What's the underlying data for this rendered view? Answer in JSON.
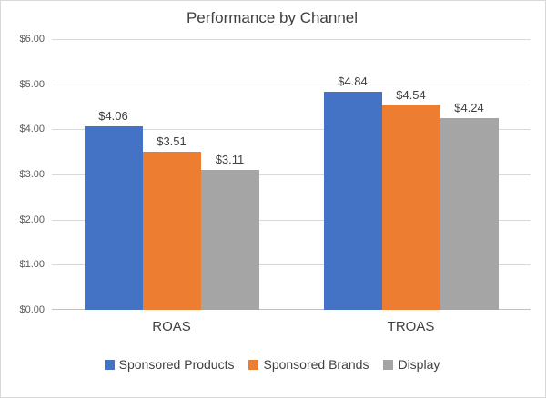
{
  "title": "Performance by Channel",
  "chart_data": {
    "type": "bar",
    "categories": [
      "ROAS",
      "TROAS"
    ],
    "series": [
      {
        "name": "Sponsored Products",
        "color": "#4472C4",
        "values": [
          4.06,
          4.84
        ],
        "labels": [
          "$4.06",
          "$4.84"
        ]
      },
      {
        "name": "Sponsored Brands",
        "color": "#ED7D31",
        "values": [
          3.51,
          4.54
        ],
        "labels": [
          "$3.51",
          "$4.54"
        ]
      },
      {
        "name": "Display",
        "color": "#A5A5A5",
        "values": [
          3.11,
          4.24
        ],
        "labels": [
          "$3.11",
          "$4.24"
        ]
      }
    ],
    "ylim": [
      0,
      6
    ],
    "yticks": [
      0,
      1,
      2,
      3,
      4,
      5,
      6
    ],
    "ytick_labels": [
      "$0.00",
      "$1.00",
      "$2.00",
      "$3.00",
      "$4.00",
      "$5.00",
      "$6.00"
    ],
    "grid": true,
    "legend_position": "bottom",
    "colors": {
      "gridline": "#D9D9D9",
      "axis_line": "#BFBFBF",
      "title_text": "#404040",
      "tick_text": "#595959"
    }
  }
}
